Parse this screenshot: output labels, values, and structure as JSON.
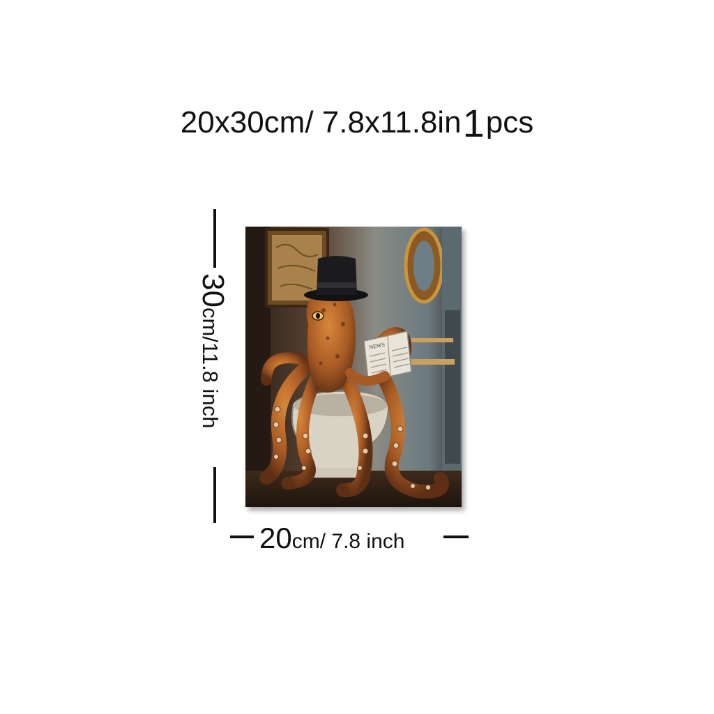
{
  "headline": {
    "size": "20x30cm/ 7.8x11.8in",
    "quantity": "1",
    "unit": "pcs"
  },
  "height_label": {
    "value": "30",
    "unit": "cm/11.8 inch"
  },
  "width_label": {
    "value": "20",
    "unit": "cm/ 7.8 inch"
  },
  "artwork": {
    "subject": "octopus wearing a top hat reading a newspaper on a toilet",
    "newspaper_text": "NEWS"
  },
  "colors": {
    "octopus": "#b8662a",
    "octopus_dark": "#6e3a1a",
    "hat": "#1b1b1e",
    "background": "#3a2a1e"
  }
}
